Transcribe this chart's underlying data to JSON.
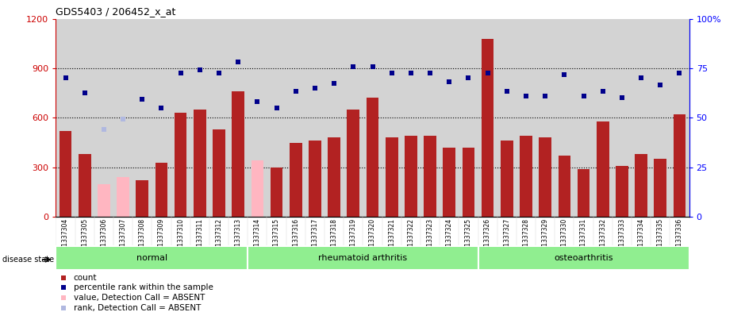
{
  "title": "GDS5403 / 206452_x_at",
  "samples": [
    "GSM1337304",
    "GSM1337305",
    "GSM1337306",
    "GSM1337307",
    "GSM1337308",
    "GSM1337309",
    "GSM1337310",
    "GSM1337311",
    "GSM1337312",
    "GSM1337313",
    "GSM1337314",
    "GSM1337315",
    "GSM1337316",
    "GSM1337317",
    "GSM1337318",
    "GSM1337319",
    "GSM1337320",
    "GSM1337321",
    "GSM1337322",
    "GSM1337323",
    "GSM1337324",
    "GSM1337325",
    "GSM1337326",
    "GSM1337327",
    "GSM1337328",
    "GSM1337329",
    "GSM1337330",
    "GSM1337331",
    "GSM1337332",
    "GSM1337333",
    "GSM1337334",
    "GSM1337335",
    "GSM1337336"
  ],
  "bar_values": [
    520,
    380,
    200,
    240,
    220,
    330,
    630,
    650,
    530,
    760,
    340,
    300,
    450,
    460,
    480,
    650,
    720,
    480,
    490,
    490,
    420,
    420,
    1080,
    460,
    490,
    480,
    370,
    290,
    580,
    310,
    380,
    350,
    620
  ],
  "bar_absent": [
    false,
    false,
    true,
    true,
    false,
    false,
    false,
    false,
    false,
    false,
    true,
    false,
    false,
    false,
    false,
    false,
    false,
    false,
    false,
    false,
    false,
    false,
    false,
    false,
    false,
    false,
    false,
    false,
    false,
    false,
    false,
    false,
    false
  ],
  "dot_values": [
    840,
    750,
    530,
    590,
    710,
    660,
    870,
    890,
    870,
    940,
    700,
    660,
    760,
    780,
    810,
    910,
    910,
    870,
    870,
    870,
    820,
    840,
    870,
    760,
    730,
    730,
    860,
    730,
    760,
    720,
    840,
    800,
    870
  ],
  "dot_absent": [
    false,
    false,
    true,
    true,
    false,
    false,
    false,
    false,
    false,
    false,
    false,
    false,
    false,
    false,
    false,
    false,
    false,
    false,
    false,
    false,
    false,
    false,
    false,
    false,
    false,
    false,
    false,
    false,
    false,
    false,
    false,
    false,
    false
  ],
  "groups": [
    {
      "label": "normal",
      "start": 0,
      "end": 10
    },
    {
      "label": "rheumatoid arthritis",
      "start": 10,
      "end": 22
    },
    {
      "label": "osteoarthritis",
      "start": 22,
      "end": 33
    }
  ],
  "ylim_left": [
    0,
    1200
  ],
  "ylim_right": [
    0,
    100
  ],
  "yticks_left": [
    0,
    300,
    600,
    900,
    1200
  ],
  "yticks_right": [
    0,
    25,
    50,
    75,
    100
  ],
  "bar_color": "#b22222",
  "bar_absent_color": "#ffb6c1",
  "dot_color": "#00008b",
  "dot_absent_color": "#b0b8e0",
  "bg_color": "#d3d3d3",
  "grid_lines": [
    300,
    600,
    900
  ],
  "legend_items": [
    {
      "label": "count",
      "color": "#b22222"
    },
    {
      "label": "percentile rank within the sample",
      "color": "#00008b"
    },
    {
      "label": "value, Detection Call = ABSENT",
      "color": "#ffb6c1"
    },
    {
      "label": "rank, Detection Call = ABSENT",
      "color": "#b0b8e0"
    }
  ]
}
